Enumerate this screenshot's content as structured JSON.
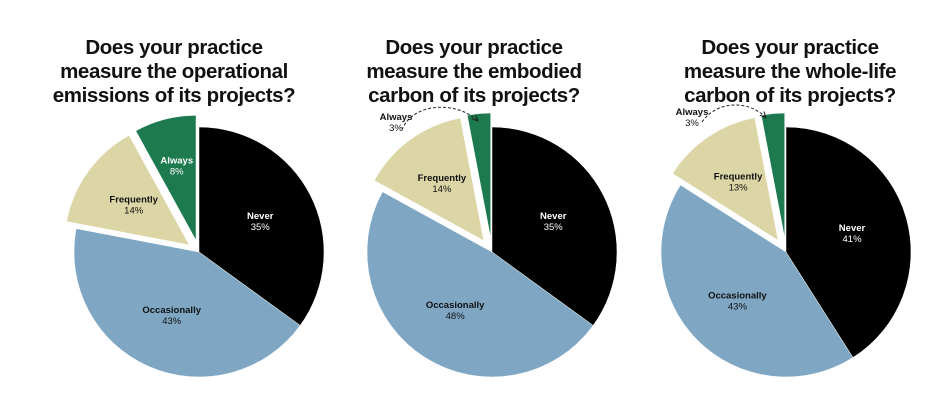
{
  "colors": {
    "never": "#000000",
    "occasionally": "#7fa7c4",
    "frequently": "#dcd6a6",
    "always": "#1c7a4e",
    "text_dark": "#111111",
    "text_light": "#ffffff"
  },
  "chart_data": [
    {
      "type": "pie",
      "title_lines": [
        "Does your practice",
        "measure the operational",
        "emissions of its projects?"
      ],
      "slices": [
        {
          "key": "never",
          "label": "Never",
          "value": 35,
          "value_label": "35%"
        },
        {
          "key": "occasionally",
          "label": "Occasionally",
          "value": 43,
          "value_label": "43%"
        },
        {
          "key": "frequently",
          "label": "Frequently",
          "value": 14,
          "value_label": "14%"
        },
        {
          "key": "always",
          "label": "Always",
          "value": 8,
          "value_label": "8%"
        }
      ]
    },
    {
      "type": "pie",
      "title_lines": [
        "Does your practice",
        "measure the embodied",
        "carbon of its projects?"
      ],
      "slices": [
        {
          "key": "never",
          "label": "Never",
          "value": 35,
          "value_label": "35%"
        },
        {
          "key": "occasionally",
          "label": "Occasionally",
          "value": 48,
          "value_label": "48%"
        },
        {
          "key": "frequently",
          "label": "Frequently",
          "value": 14,
          "value_label": "14%"
        },
        {
          "key": "always",
          "label": "Always",
          "value": 3,
          "value_label": "3%"
        }
      ]
    },
    {
      "type": "pie",
      "title_lines": [
        "Does your practice",
        "measure the whole-life",
        "carbon of its projects?"
      ],
      "slices": [
        {
          "key": "never",
          "label": "Never",
          "value": 41,
          "value_label": "41%"
        },
        {
          "key": "occasionally",
          "label": "Occasionally",
          "value": 43,
          "value_label": "43%"
        },
        {
          "key": "frequently",
          "label": "Frequently",
          "value": 13,
          "value_label": "13%"
        },
        {
          "key": "always",
          "label": "Always",
          "value": 3,
          "value_label": "3%"
        }
      ]
    }
  ]
}
